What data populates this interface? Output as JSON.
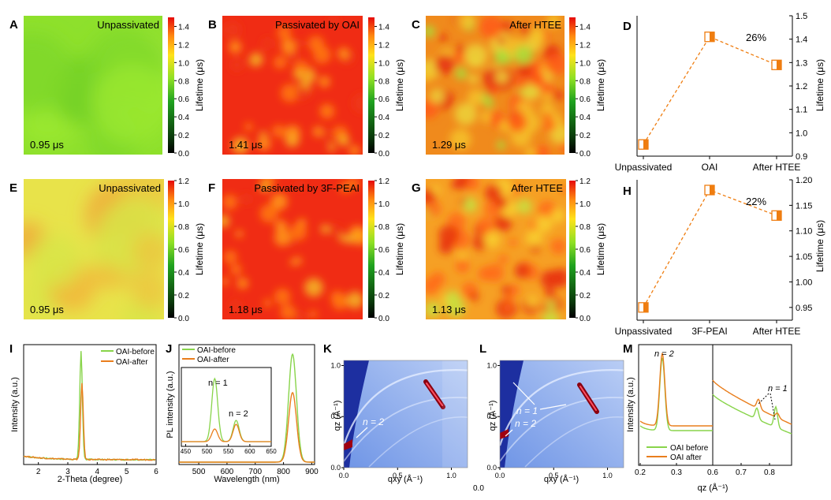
{
  "maps": [
    {
      "letter": "A",
      "title": "Unpassivated",
      "value_label": "0.95 μs",
      "style": "green",
      "seed": 11
    },
    {
      "letter": "B",
      "title": "Passivated by OAI",
      "value_label": "1.41 μs",
      "style": "red",
      "seed": 23
    },
    {
      "letter": "C",
      "title": "After HTEE",
      "value_label": "1.29 μs",
      "style": "mixed",
      "seed": 37
    },
    {
      "letter": "E",
      "title": "Unpassivated",
      "value_label": "0.95 μs",
      "style": "yellow",
      "seed": 41
    },
    {
      "letter": "F",
      "title": "Passivated by 3F-PEAI",
      "value_label": "1.18 μs",
      "style": "red",
      "seed": 53
    },
    {
      "letter": "G",
      "title": "After HTEE",
      "value_label": "1.13 μs",
      "style": "orange",
      "seed": 67
    }
  ],
  "colorbars": [
    {
      "label": "Lifetime (μs)",
      "ticks": [
        "1.4",
        "1.2",
        "1.0",
        "0.8",
        "0.6",
        "0.4",
        "0.2",
        "0.0"
      ]
    },
    {
      "label": "Lifetime (μs)",
      "ticks": [
        "1.2",
        "1.0",
        "0.8",
        "0.6",
        "0.4",
        "0.2",
        "0.0"
      ]
    }
  ],
  "chart_data": [
    {
      "panel": "D",
      "type": "line",
      "categories": [
        "Unpassivated",
        "OAI",
        "After HTEE"
      ],
      "values": [
        0.95,
        1.41,
        1.29
      ],
      "ylim": [
        0.9,
        1.5
      ],
      "yticks": [
        "1.5",
        "1.4",
        "1.3",
        "1.2",
        "1.1",
        "1.0",
        "0.9"
      ],
      "ylabel": "Lifetime (μs)",
      "annotation": "26%"
    },
    {
      "panel": "H",
      "type": "line",
      "categories": [
        "Unpassivated",
        "3F-PEAI",
        "After  HTEE"
      ],
      "values": [
        0.95,
        1.18,
        1.13
      ],
      "ylim": [
        0.925,
        1.2
      ],
      "yticks": [
        "1.20",
        "1.15",
        "1.10",
        "1.05",
        "1.00",
        "0.95"
      ],
      "ylabel": "Lifetime (μs)",
      "annotation": "22%"
    },
    {
      "panel": "I",
      "type": "line",
      "xlabel": "2-Theta (degree)",
      "ylabel": "Intensity (a.u.)",
      "xlim": [
        1.5,
        6
      ],
      "xticks": [
        "2",
        "3",
        "4",
        "5",
        "6"
      ],
      "series": [
        {
          "name": "OAI-before",
          "peak_x": 3.45,
          "peak_height": 0.9,
          "color": "#88d44a"
        },
        {
          "name": "OAI-after",
          "peak_x": 3.48,
          "peak_height": 0.64,
          "color": "#e97e1d"
        }
      ]
    },
    {
      "panel": "J",
      "type": "line",
      "xlabel": "Wavelength (nm)",
      "ylabel": "PL intensity (a.u.)",
      "xlim": [
        430,
        910
      ],
      "xticks": [
        "500",
        "600",
        "700",
        "800",
        "900"
      ],
      "series": [
        {
          "name": "OAI-before",
          "peak_x": 832,
          "peak_height": 0.9,
          "color": "#88d44a"
        },
        {
          "name": "OAI-after",
          "peak_x": 832,
          "peak_height": 0.58,
          "color": "#e97e1d"
        }
      ],
      "inset": {
        "xlim": [
          440,
          650
        ],
        "xticks": [
          "450",
          "500",
          "550",
          "600",
          "650"
        ],
        "labels": [
          "n = 1",
          "n = 2"
        ],
        "peaks": [
          {
            "x": 518,
            "before": 0.8,
            "after": 0.16
          },
          {
            "x": 568,
            "before": 0.27,
            "after": 0.22
          }
        ]
      }
    },
    {
      "panel": "K",
      "type": "heatmap",
      "xlabel": "qxy (Å⁻¹)",
      "ylabel": "qz (Å⁻¹)",
      "xticks": [
        "0.0",
        "0.5",
        "1.0"
      ],
      "yticks": [
        "0.0",
        "0.5",
        "1.0"
      ],
      "annotation": "n = 2"
    },
    {
      "panel": "L",
      "type": "heatmap",
      "xlabel": "qxy (Å⁻¹)",
      "ylabel": "qz (Å⁻¹)",
      "xticks": [
        "0.0",
        "0.5",
        "1.0"
      ],
      "yticks": [
        "0.0",
        "0.5",
        "1.0"
      ],
      "annotations": [
        "n = 1",
        "n = 2"
      ],
      "origin_label": "0.0"
    },
    {
      "panel": "M",
      "type": "line",
      "xlabel": "qz (Å⁻¹)",
      "ylabel": "Intensity (a.u.)",
      "xticks": [
        "0.2",
        "0.3",
        "0.6",
        "0.7",
        "0.8"
      ],
      "labels": [
        "n = 2",
        "n = 1"
      ],
      "series": [
        {
          "name": "OAI before",
          "color": "#88d44a"
        },
        {
          "name": "OAI after",
          "color": "#e97e1d"
        }
      ]
    }
  ],
  "letters": {
    "D": "D",
    "H": "H",
    "I": "I",
    "J": "J",
    "K": "K",
    "L": "L",
    "M": "M"
  }
}
